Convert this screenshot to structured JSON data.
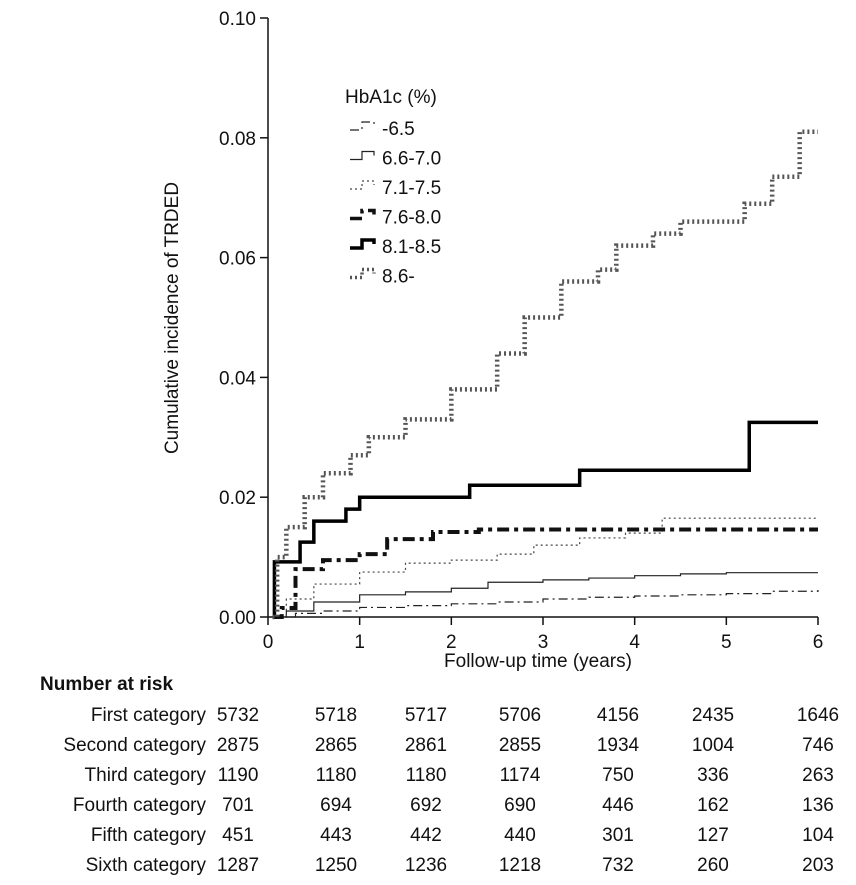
{
  "chart_data": {
    "type": "line",
    "xlabel": "Follow-up time (years)",
    "ylabel": "Cumulative incidence of TRDED",
    "xlim": [
      0,
      6
    ],
    "ylim": [
      0,
      0.1
    ],
    "x_ticks": [
      "0",
      "1",
      "2",
      "3",
      "4",
      "5",
      "6"
    ],
    "y_ticks": [
      "0.00",
      "0.02",
      "0.04",
      "0.06",
      "0.08",
      "0.10"
    ],
    "legend_title": "HbA1c (%)",
    "legend_position": "top-left",
    "grid": false,
    "series": [
      {
        "name": "-6.5",
        "style": "thin-dashdot",
        "points": [
          [
            0.05,
            0
          ],
          [
            0.3,
            0.0006
          ],
          [
            0.6,
            0.001
          ],
          [
            1,
            0.0016
          ],
          [
            1.5,
            0.0019
          ],
          [
            2,
            0.0022
          ],
          [
            2.5,
            0.0025
          ],
          [
            3,
            0.003
          ],
          [
            3.5,
            0.0033
          ],
          [
            4,
            0.0035
          ],
          [
            4.5,
            0.0037
          ],
          [
            5,
            0.0039
          ],
          [
            5.5,
            0.0043
          ],
          [
            6,
            0.0045
          ]
        ]
      },
      {
        "name": "6.6-7.0",
        "style": "thin-solid",
        "points": [
          [
            0.05,
            0
          ],
          [
            0.2,
            0.001
          ],
          [
            0.5,
            0.0025
          ],
          [
            1,
            0.0037
          ],
          [
            1.5,
            0.0042
          ],
          [
            2,
            0.0048
          ],
          [
            2.4,
            0.0058
          ],
          [
            3,
            0.0062
          ],
          [
            3.5,
            0.0065
          ],
          [
            4,
            0.0069
          ],
          [
            4.5,
            0.0072
          ],
          [
            5,
            0.0074
          ],
          [
            6,
            0.0074
          ]
        ]
      },
      {
        "name": "7.1-7.5",
        "style": "thin-dotted",
        "points": [
          [
            0.05,
            0
          ],
          [
            0.2,
            0.003
          ],
          [
            0.5,
            0.0055
          ],
          [
            1,
            0.0075
          ],
          [
            1.5,
            0.009
          ],
          [
            2,
            0.0095
          ],
          [
            2.5,
            0.0105
          ],
          [
            2.9,
            0.012
          ],
          [
            3.4,
            0.0132
          ],
          [
            3.9,
            0.014
          ],
          [
            4.3,
            0.0165
          ],
          [
            5,
            0.0165
          ],
          [
            6,
            0.0165
          ]
        ]
      },
      {
        "name": "7.6-8.0",
        "style": "thick-dashdot",
        "points": [
          [
            0.05,
            0
          ],
          [
            0.15,
            0.0015
          ],
          [
            0.3,
            0.008
          ],
          [
            0.6,
            0.0095
          ],
          [
            1,
            0.0105
          ],
          [
            1.3,
            0.013
          ],
          [
            1.8,
            0.0142
          ],
          [
            2.3,
            0.0146
          ],
          [
            3,
            0.0146
          ],
          [
            3.5,
            0.0146
          ],
          [
            4,
            0.0146
          ],
          [
            5,
            0.0146
          ],
          [
            6,
            0.0146
          ]
        ]
      },
      {
        "name": "8.1-8.5",
        "style": "thick-solid",
        "points": [
          [
            0.05,
            0
          ],
          [
            0.07,
            0.0092
          ],
          [
            0.35,
            0.0125
          ],
          [
            0.5,
            0.016
          ],
          [
            0.85,
            0.018
          ],
          [
            1,
            0.02
          ],
          [
            2.2,
            0.022
          ],
          [
            3.4,
            0.0245
          ],
          [
            5.25,
            0.0325
          ],
          [
            6,
            0.0325
          ]
        ]
      },
      {
        "name": "8.6-",
        "style": "thick-dotted",
        "points": [
          [
            0.05,
            0
          ],
          [
            0.1,
            0.01
          ],
          [
            0.2,
            0.015
          ],
          [
            0.4,
            0.02
          ],
          [
            0.6,
            0.024
          ],
          [
            0.9,
            0.027
          ],
          [
            1.1,
            0.03
          ],
          [
            1.5,
            0.033
          ],
          [
            2,
            0.038
          ],
          [
            2.5,
            0.044
          ],
          [
            2.8,
            0.05
          ],
          [
            3.2,
            0.056
          ],
          [
            3.6,
            0.058
          ],
          [
            3.8,
            0.062
          ],
          [
            4.2,
            0.064
          ],
          [
            4.5,
            0.066
          ],
          [
            5,
            0.066
          ],
          [
            5.2,
            0.069
          ],
          [
            5.5,
            0.0735
          ],
          [
            5.8,
            0.081
          ],
          [
            6,
            0.081
          ]
        ]
      }
    ]
  },
  "risk_table": {
    "title": "Number at risk",
    "rows": [
      {
        "label": "First category",
        "values": [
          "5732",
          "5718",
          "5717",
          "5706",
          "4156",
          "2435",
          "1646"
        ]
      },
      {
        "label": "Second category",
        "values": [
          "2875",
          "2865",
          "2861",
          "2855",
          "1934",
          "1004",
          "746"
        ]
      },
      {
        "label": "Third category",
        "values": [
          "1190",
          "1180",
          "1180",
          "1174",
          "750",
          "336",
          "263"
        ]
      },
      {
        "label": "Fourth category",
        "values": [
          "701",
          "694",
          "692",
          "690",
          "446",
          "162",
          "136"
        ]
      },
      {
        "label": "Fifth  category",
        "values": [
          "451",
          "443",
          "442",
          "440",
          "301",
          "127",
          "104"
        ]
      },
      {
        "label": "Sixth  category",
        "values": [
          "1287",
          "1250",
          "1236",
          "1218",
          "732",
          "260",
          "203"
        ]
      }
    ]
  }
}
